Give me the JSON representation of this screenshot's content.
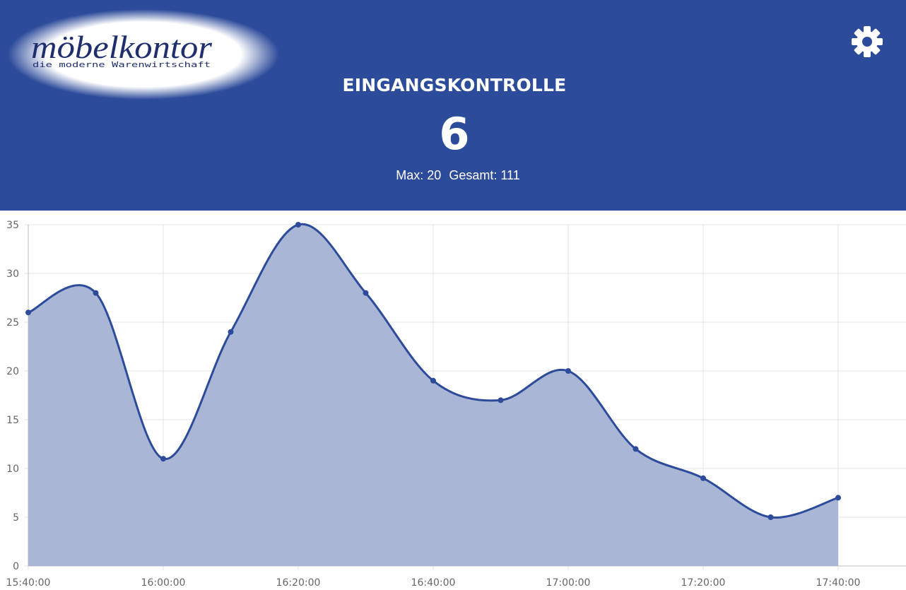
{
  "brand": {
    "name_part1": "möbel",
    "name_part2": "kontor",
    "tagline": "die moderne Warenwirtschaft"
  },
  "header": {
    "title": "EINGANGSKONTROLLE",
    "current_count": "6",
    "max_label": "Max: 20",
    "total_label": "Gesamt: 111",
    "settings_icon": "gear-icon",
    "background_color": "#2d4b9b"
  },
  "chart_data": {
    "type": "area",
    "x": [
      "15:40:00",
      "15:50:00",
      "16:00:00",
      "16:10:00",
      "16:20:00",
      "16:30:00",
      "16:40:00",
      "16:50:00",
      "17:00:00",
      "17:10:00",
      "17:20:00",
      "17:30:00",
      "17:40:00"
    ],
    "x_tick_labels": [
      "15:40:00",
      "16:00:00",
      "16:20:00",
      "16:40:00",
      "17:00:00",
      "17:20:00",
      "17:40:00"
    ],
    "series": [
      {
        "values": [
          26,
          28,
          11,
          24,
          35,
          28,
          19,
          17,
          20,
          12,
          9,
          5,
          7
        ],
        "line_color": "#2d4b9b",
        "fill_color": "#a9b6d6"
      }
    ],
    "y_ticks": [
      0,
      5,
      10,
      15,
      20,
      25,
      30,
      35
    ],
    "ylim": [
      0,
      35
    ],
    "grid": true
  }
}
